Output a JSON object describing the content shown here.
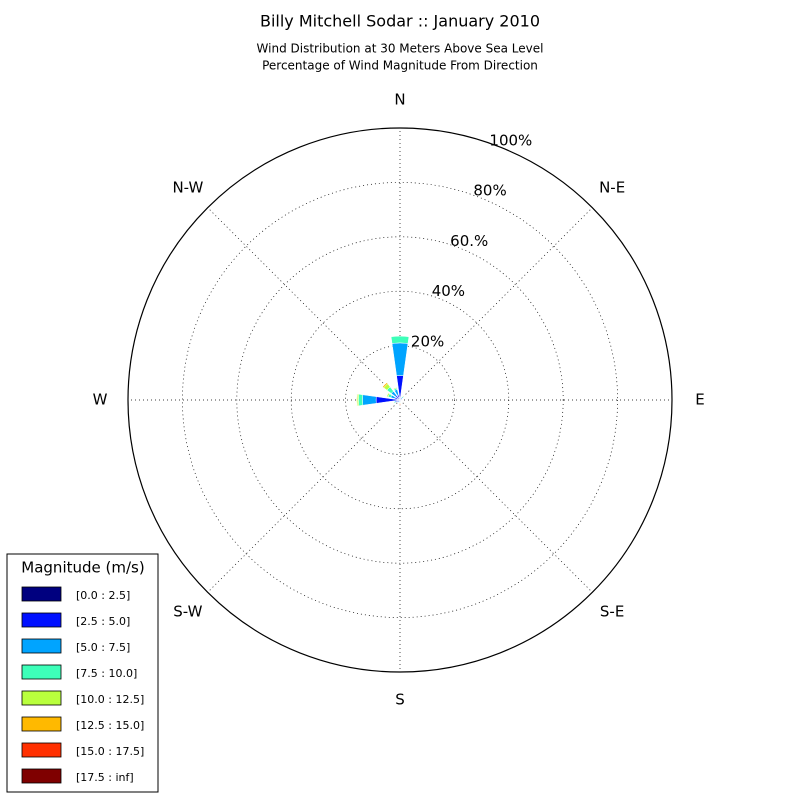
{
  "chart_data": {
    "type": "windrose",
    "title": "Billy Mitchell Sodar :: January 2010",
    "subtitle": [
      "Wind Distribution at 30 Meters Above Sea Level",
      "Percentage of Wind Magnitude From Direction"
    ],
    "categories": [
      "N",
      null,
      "N-E",
      null,
      "E",
      null,
      "S-E",
      null,
      "S",
      null,
      "S-W",
      null,
      "W",
      null,
      "N-W",
      null
    ],
    "ylim": [
      0,
      100
    ],
    "yticks": [
      {
        "value": 20,
        "label": "20%"
      },
      {
        "value": 40,
        "label": "40%"
      },
      {
        "value": 60,
        "label": "60.%"
      },
      {
        "value": 80,
        "label": "80%"
      },
      {
        "value": 100,
        "label": "100%"
      }
    ],
    "grid": true,
    "legend_title": "Magnitude (m/s)",
    "legend": "lower left",
    "series": [
      {
        "name": "[0.0 : 2.5]",
        "color": "#00007f",
        "values": [
          1,
          0.3,
          0.3,
          0.3,
          0.2,
          0.2,
          0.2,
          0.3,
          0.3,
          0.3,
          0.3,
          0.5,
          0.8,
          0.5,
          0.5,
          0.5
        ]
      },
      {
        "name": "[2.5 : 5.0]",
        "color": "#0010ff",
        "values": [
          8,
          0.5,
          0.5,
          0.3,
          0.2,
          0.2,
          0.2,
          0.2,
          0.3,
          0.3,
          0.5,
          1,
          8,
          1.5,
          1.5,
          1.5
        ]
      },
      {
        "name": "[5.0 : 7.5]",
        "color": "#00a4ff",
        "values": [
          12,
          0.3,
          0.5,
          0.2,
          0,
          0,
          0,
          0,
          0.3,
          0.3,
          0.3,
          0.5,
          5,
          1.5,
          2,
          2
        ]
      },
      {
        "name": "[7.5 : 10.0]",
        "color": "#3dffb9",
        "values": [
          2.5,
          0,
          0.3,
          0,
          0,
          0,
          0,
          0,
          0.2,
          0,
          0,
          0.3,
          1.5,
          1,
          2,
          0.5
        ]
      },
      {
        "name": "[10.0 : 12.5]",
        "color": "#b9ff3d",
        "values": [
          0,
          0,
          0.2,
          0,
          0,
          0,
          0,
          0,
          0.2,
          0,
          0,
          0,
          0.5,
          0.5,
          1.5,
          0.3
        ]
      },
      {
        "name": "[12.5 : 15.0]",
        "color": "#ffb900",
        "values": [
          0,
          0,
          0,
          0,
          0,
          0,
          0,
          0,
          0.3,
          0,
          0,
          0,
          0.2,
          0,
          0.5,
          0
        ]
      },
      {
        "name": "[15.0 : 17.5]",
        "color": "#ff3000",
        "values": [
          0,
          0,
          0,
          0,
          0,
          0,
          0,
          0,
          0.3,
          0,
          0,
          0,
          0,
          0,
          0,
          0
        ]
      },
      {
        "name": "[17.5 : inf]",
        "color": "#7f0000",
        "values": [
          0,
          0,
          0,
          0,
          0,
          0,
          0,
          0,
          0.2,
          0,
          0,
          0,
          0,
          0,
          0,
          0
        ]
      }
    ]
  }
}
